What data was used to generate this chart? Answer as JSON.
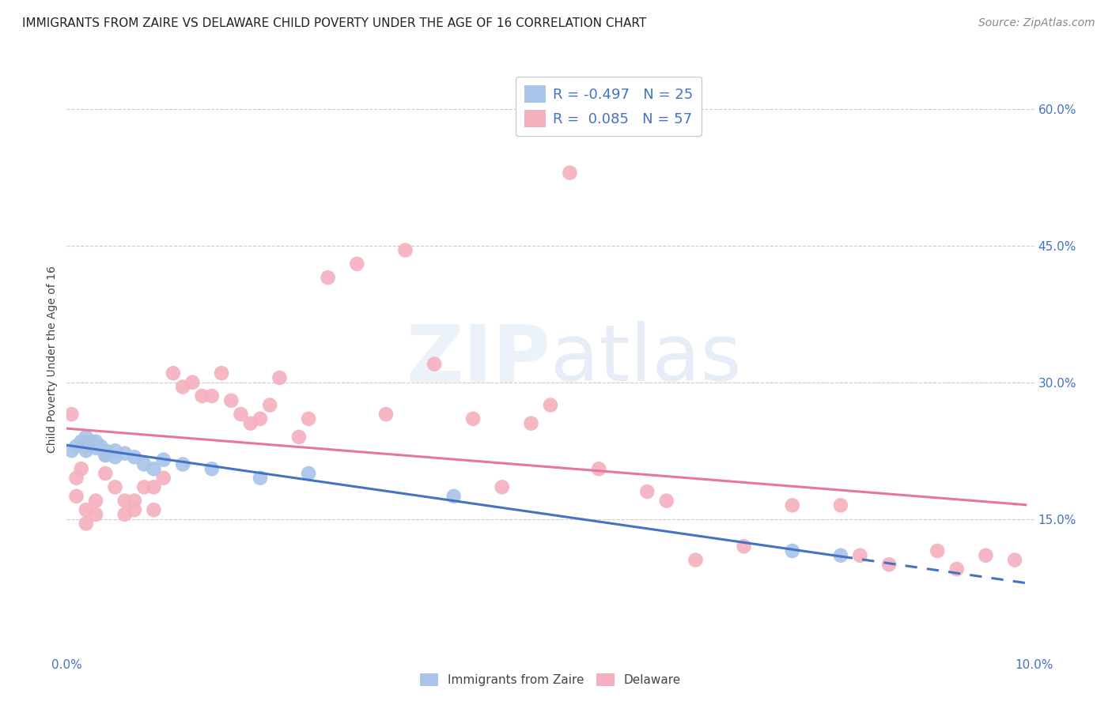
{
  "title": "IMMIGRANTS FROM ZAIRE VS DELAWARE CHILD POVERTY UNDER THE AGE OF 16 CORRELATION CHART",
  "source": "Source: ZipAtlas.com",
  "ylabel": "Child Poverty Under the Age of 16",
  "xlim": [
    0.0,
    0.1
  ],
  "ylim": [
    0.0,
    0.65
  ],
  "yticks": [
    0.15,
    0.3,
    0.45,
    0.6
  ],
  "ytick_labels": [
    "15.0%",
    "30.0%",
    "45.0%",
    "60.0%"
  ],
  "background_color": "#ffffff",
  "watermark": "ZIPatlas",
  "legend_R_blue": "-0.497",
  "legend_N_blue": "25",
  "legend_R_pink": "0.085",
  "legend_N_pink": "57",
  "blue_color": "#a8c4e8",
  "pink_color": "#f5b0bf",
  "blue_line_color": "#4472c4",
  "pink_line_color": "#e8759a",
  "blue_scatter_x": [
    0.0005,
    0.001,
    0.0015,
    0.002,
    0.002,
    0.0025,
    0.003,
    0.003,
    0.0035,
    0.004,
    0.004,
    0.005,
    0.005,
    0.006,
    0.007,
    0.008,
    0.009,
    0.01,
    0.012,
    0.015,
    0.02,
    0.025,
    0.04,
    0.075,
    0.08
  ],
  "blue_scatter_y": [
    0.225,
    0.23,
    0.235,
    0.24,
    0.225,
    0.235,
    0.228,
    0.235,
    0.23,
    0.225,
    0.22,
    0.225,
    0.218,
    0.222,
    0.218,
    0.21,
    0.205,
    0.215,
    0.21,
    0.205,
    0.195,
    0.2,
    0.175,
    0.115,
    0.11
  ],
  "pink_scatter_x": [
    0.0005,
    0.001,
    0.001,
    0.0015,
    0.002,
    0.002,
    0.002,
    0.003,
    0.003,
    0.004,
    0.004,
    0.005,
    0.006,
    0.006,
    0.007,
    0.007,
    0.008,
    0.009,
    0.009,
    0.01,
    0.011,
    0.012,
    0.013,
    0.014,
    0.015,
    0.016,
    0.017,
    0.018,
    0.019,
    0.02,
    0.021,
    0.022,
    0.024,
    0.025,
    0.027,
    0.03,
    0.033,
    0.035,
    0.038,
    0.042,
    0.045,
    0.048,
    0.05,
    0.052,
    0.055,
    0.06,
    0.062,
    0.065,
    0.07,
    0.075,
    0.08,
    0.082,
    0.085,
    0.09,
    0.092,
    0.095,
    0.098
  ],
  "pink_scatter_y": [
    0.265,
    0.195,
    0.175,
    0.205,
    0.23,
    0.16,
    0.145,
    0.17,
    0.155,
    0.22,
    0.2,
    0.185,
    0.17,
    0.155,
    0.17,
    0.16,
    0.185,
    0.185,
    0.16,
    0.195,
    0.31,
    0.295,
    0.3,
    0.285,
    0.285,
    0.31,
    0.28,
    0.265,
    0.255,
    0.26,
    0.275,
    0.305,
    0.24,
    0.26,
    0.415,
    0.43,
    0.265,
    0.445,
    0.32,
    0.26,
    0.185,
    0.255,
    0.275,
    0.53,
    0.205,
    0.18,
    0.17,
    0.105,
    0.12,
    0.165,
    0.165,
    0.11,
    0.1,
    0.115,
    0.095,
    0.11,
    0.105
  ],
  "title_fontsize": 11,
  "axis_label_fontsize": 10,
  "tick_fontsize": 11,
  "legend_fontsize": 13,
  "source_fontsize": 10
}
